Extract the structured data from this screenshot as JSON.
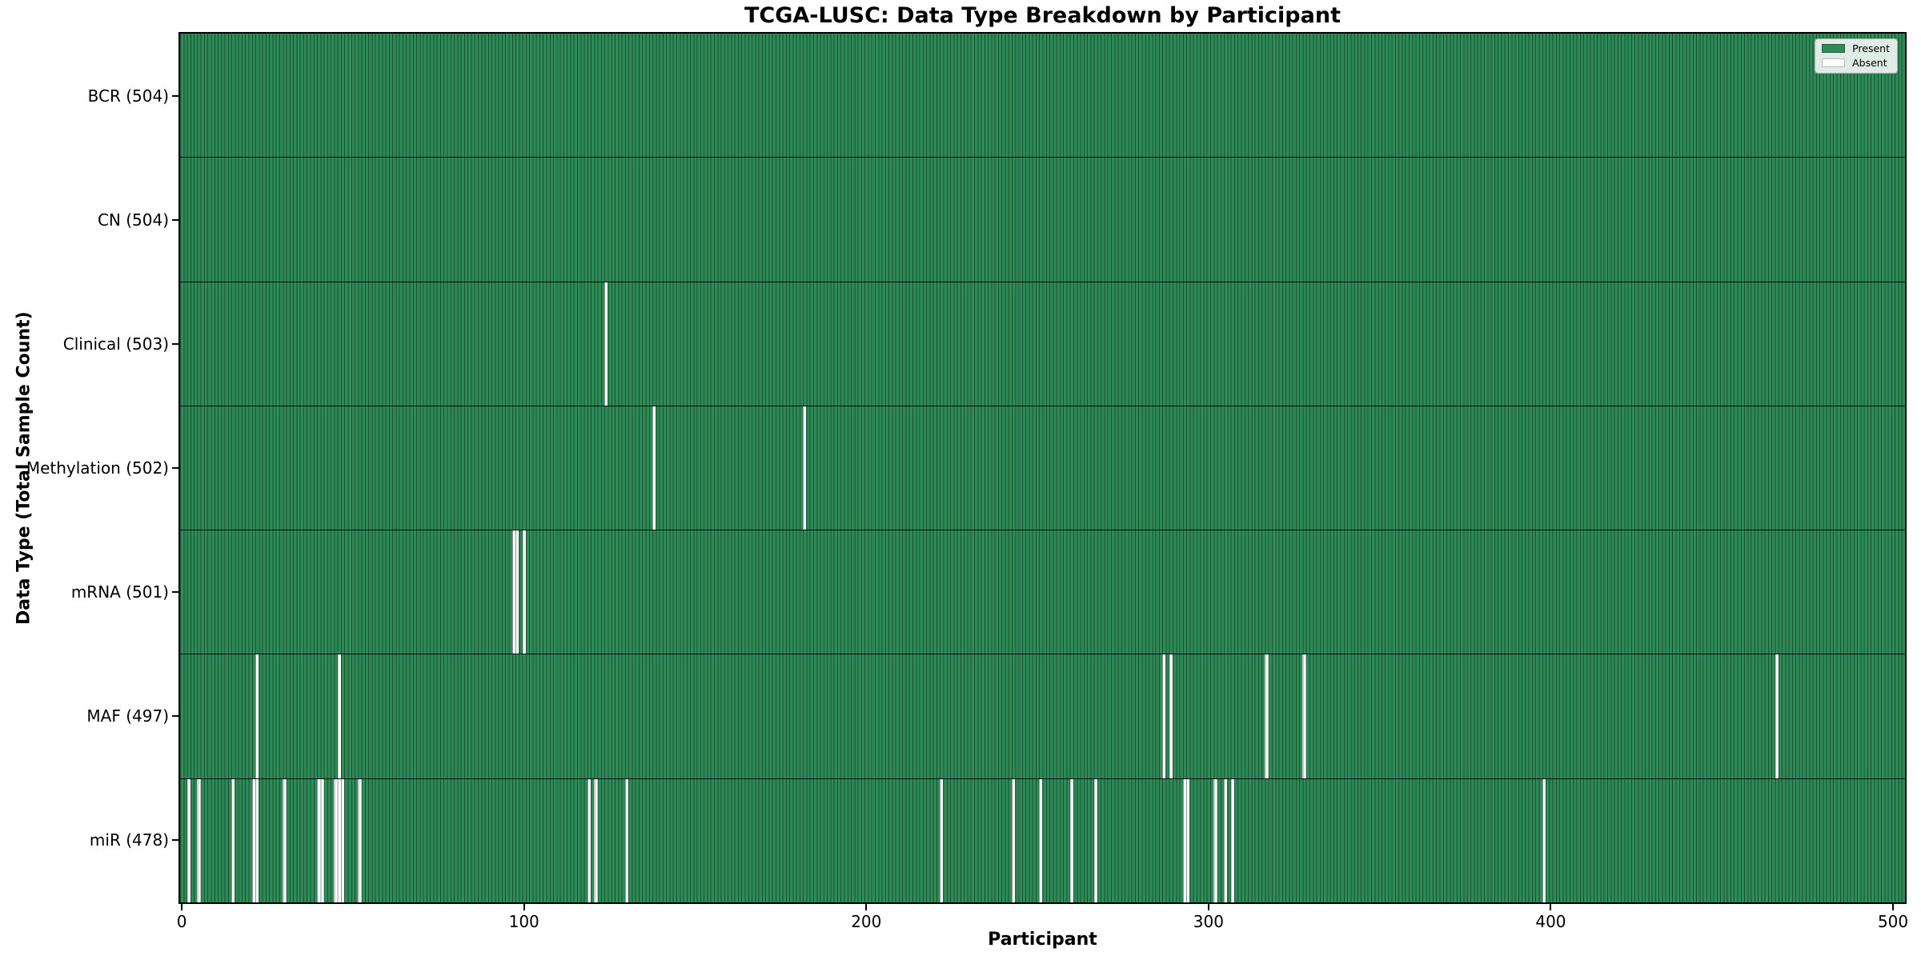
{
  "chart_data": {
    "type": "heatmap",
    "title": "TCGA-LUSC: Data Type Breakdown by Participant",
    "xlabel": "Participant",
    "ylabel": "Data Type (Total Sample Count)",
    "n_participants": 504,
    "x_ticks": [
      0,
      100,
      200,
      300,
      400,
      500
    ],
    "xlim": [
      0,
      504
    ],
    "grid": false,
    "legend_position": "upper right",
    "colors": {
      "present": "#2e8b57",
      "absent": "#ffffff",
      "bar_edge": "rgba(0,0,0,0.42)",
      "separator": "#101010"
    },
    "legend": [
      {
        "label": "Present",
        "color": "#2e8b57"
      },
      {
        "label": "Absent",
        "color": "#ffffff"
      }
    ],
    "rows": [
      {
        "label": "BCR (504)",
        "data_type": "BCR",
        "present_count": 504,
        "absent_participants": []
      },
      {
        "label": "CN (504)",
        "data_type": "CN",
        "present_count": 504,
        "absent_participants": []
      },
      {
        "label": "Clinical (503)",
        "data_type": "Clinical",
        "present_count": 503,
        "absent_participants": [
          124
        ]
      },
      {
        "label": "Methylation (502)",
        "data_type": "Methylation",
        "present_count": 502,
        "absent_participants": [
          138,
          182
        ]
      },
      {
        "label": "mRNA (501)",
        "data_type": "mRNA",
        "present_count": 501,
        "absent_participants": [
          97,
          98,
          100
        ]
      },
      {
        "label": "MAF (497)",
        "data_type": "MAF",
        "present_count": 497,
        "absent_participants": [
          22,
          46,
          287,
          289,
          317,
          328,
          466
        ]
      },
      {
        "label": "miR (478)",
        "data_type": "miR",
        "present_count": 478,
        "absent_participants": [
          2,
          5,
          15,
          21,
          22,
          30,
          40,
          41,
          45,
          46,
          47,
          52,
          119,
          121,
          130,
          222,
          243,
          251,
          260,
          267,
          293,
          294,
          302,
          305,
          307,
          398
        ]
      }
    ]
  }
}
